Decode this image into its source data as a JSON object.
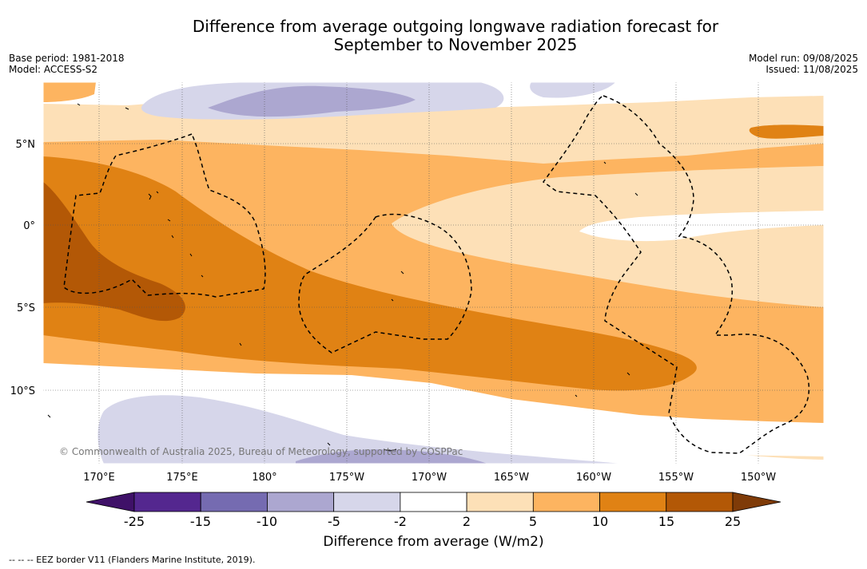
{
  "title": {
    "line1": "Difference from average outgoing longwave radiation forecast for",
    "line2": "September to November 2025"
  },
  "meta_left": {
    "line1": "Base period: 1981-2018",
    "line2": "Model: ACCESS-S2"
  },
  "meta_right": {
    "line1": "Model run: 09/08/2025",
    "line2": "Issued: 11/08/2025"
  },
  "map": {
    "lat_labels": [
      "5°N",
      "0°",
      "5°S",
      "10°S"
    ],
    "lon_labels": [
      "170°E",
      "175°E",
      "180°",
      "175°W",
      "170°W",
      "165°W",
      "160°W",
      "155°W",
      "150°W"
    ],
    "copyright": "© Commonwealth of Australia 2025, Bureau of Meteorology, supported by COSPPac"
  },
  "colorbar": {
    "tick_labels": [
      "-25",
      "-15",
      "-10",
      "-5",
      "-2",
      "2",
      "5",
      "10",
      "15",
      "25"
    ],
    "colors": [
      "#3f1168",
      "#54278f",
      "#756bb1",
      "#aca7d0",
      "#d6d6ea",
      "#ffffff",
      "#fde0b7",
      "#fdb460",
      "#e08214",
      "#b35806",
      "#7f3b08"
    ],
    "title": "Difference from average (W/m2)"
  },
  "footnote": "--  --  -- EEZ border V11 (Flanders Marine Institute, 2019)."
}
